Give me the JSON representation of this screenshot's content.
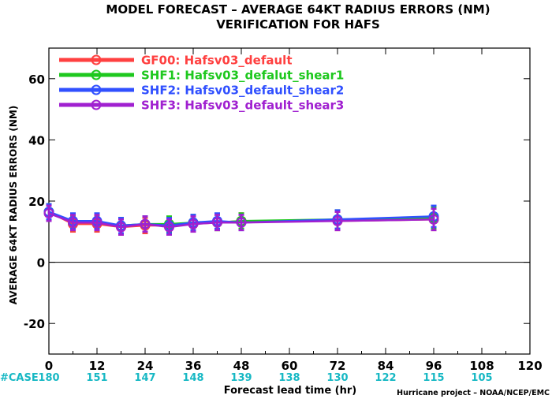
{
  "title_line1": "MODEL FORECAST – AVERAGE 64KT RADIUS ERRORS (NM)",
  "title_line2": "VERIFICATION FOR HAFS",
  "credit": "Hurricane project – NOAA/NCEP/EMC",
  "case_label": "#CASE",
  "chart_data": {
    "type": "line",
    "title": "MODEL FORECAST – AVERAGE 64KT RADIUS ERRORS (NM)",
    "subtitle": "VERIFICATION FOR HAFS",
    "xlabel": "Forecast lead time (hr)",
    "ylabel": "AVERAGE 64KT RADIUS ERRORS (NM)",
    "xlim": [
      0,
      120
    ],
    "ylim": [
      -30,
      70
    ],
    "xticks": [
      0,
      12,
      24,
      36,
      48,
      60,
      72,
      84,
      96,
      108,
      120
    ],
    "yticks": [
      -20,
      0,
      20,
      40,
      60
    ],
    "grid": false,
    "legend_position": "top-left",
    "zero_line": true,
    "x": [
      0,
      6,
      12,
      18,
      24,
      30,
      36,
      42,
      48,
      72,
      96
    ],
    "series": [
      {
        "name": "GF00: Hafsv03_default",
        "color": "#ff4040",
        "values": [
          16.5,
          12.5,
          12.5,
          11.5,
          12.0,
          12.0,
          12.5,
          13.0,
          13.5,
          13.5,
          14.0
        ],
        "err": [
          2.5,
          2.5,
          2.5,
          2.5,
          2.5,
          2.5,
          2.5,
          2.5,
          2.5,
          3.0,
          3.5
        ]
      },
      {
        "name": "SHF1: Hafsv03_defalut_shear1",
        "color": "#1ec81e",
        "values": [
          16.5,
          13.0,
          13.0,
          12.0,
          12.5,
          12.5,
          13.0,
          13.0,
          13.5,
          14.0,
          14.5
        ],
        "err": [
          2.5,
          2.5,
          2.5,
          2.5,
          2.5,
          2.5,
          2.5,
          2.5,
          2.5,
          3.0,
          3.5
        ]
      },
      {
        "name": "SHF2: Hafsv03_default_shear2",
        "color": "#3050ff",
        "values": [
          16.5,
          13.5,
          13.5,
          12.0,
          12.5,
          12.0,
          13.0,
          13.5,
          13.0,
          14.0,
          15.0
        ],
        "err": [
          2.5,
          2.5,
          2.5,
          2.5,
          2.5,
          2.5,
          2.5,
          2.5,
          2.5,
          3.0,
          3.5
        ]
      },
      {
        "name": "SHF3: Hafsv03_default_shear3",
        "color": "#a020d0",
        "values": [
          16.0,
          13.0,
          13.0,
          11.5,
          12.5,
          11.5,
          12.5,
          13.0,
          13.0,
          13.5,
          14.0
        ],
        "err": [
          2.5,
          2.5,
          2.5,
          2.5,
          2.5,
          2.5,
          2.5,
          2.5,
          2.5,
          3.0,
          3.5
        ]
      }
    ],
    "cases": [
      {
        "x": 0,
        "n": "180"
      },
      {
        "x": 12,
        "n": "151"
      },
      {
        "x": 24,
        "n": "147"
      },
      {
        "x": 36,
        "n": "148"
      },
      {
        "x": 48,
        "n": "139"
      },
      {
        "x": 60,
        "n": "138"
      },
      {
        "x": 72,
        "n": "130"
      },
      {
        "x": 84,
        "n": "122"
      },
      {
        "x": 96,
        "n": "115"
      },
      {
        "x": 108,
        "n": "105"
      }
    ]
  }
}
